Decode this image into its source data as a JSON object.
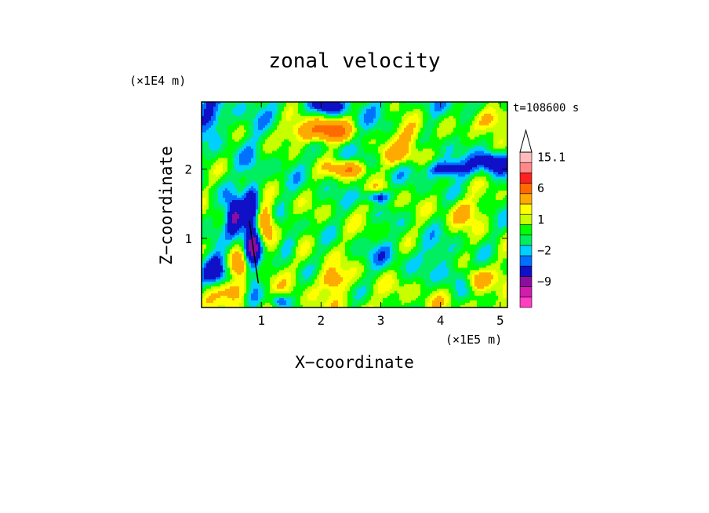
{
  "chart_data": {
    "type": "heatmap",
    "title": "zonal velocity",
    "xlabel": "X−coordinate",
    "ylabel": "Z−coordinate",
    "x_units_label": "(×1E5 m)",
    "y_units_label": "(×1E4 m)",
    "time_label": "t=108600 s",
    "xlim": [
      0,
      5.12
    ],
    "ylim": [
      0,
      2.97
    ],
    "x_ticks": [
      1,
      2,
      3,
      4,
      5
    ],
    "x_tick_labels": [
      "1",
      "2",
      "3",
      "4",
      "5"
    ],
    "y_ticks": [
      1,
      2
    ],
    "y_tick_labels": [
      "1",
      "2"
    ],
    "colorbar": {
      "levels": [
        -15,
        -12,
        -9,
        -6,
        -3,
        -2,
        -1,
        0,
        1,
        2,
        3,
        6,
        9,
        12,
        15.1
      ],
      "colors": [
        "#ff3fbf",
        "#d21cad",
        "#8b0e9f",
        "#1010c8",
        "#0070ff",
        "#00d0ff",
        "#00ee60",
        "#00ff00",
        "#c8ff00",
        "#ffff00",
        "#ffaa00",
        "#ff6a00",
        "#ff2020",
        "#ff8888",
        "#ffbbbb"
      ],
      "labels": [
        {
          "value": 15.1,
          "text": "15.1"
        },
        {
          "value": 6,
          "text": "6"
        },
        {
          "value": 1,
          "text": "1"
        },
        {
          "value": -2,
          "text": "−2"
        },
        {
          "value": -9,
          "text": "−9"
        }
      ],
      "extend": "max"
    },
    "field_features": [
      {
        "x": 0.85,
        "z": 1.0,
        "dx": 0.15,
        "dz": 0.7,
        "v": -9
      },
      {
        "x": 0.55,
        "z": 1.3,
        "dx": 0.15,
        "dz": 0.25,
        "v": -7
      },
      {
        "x": 0.3,
        "z": 0.55,
        "dx": 0.25,
        "dz": 0.25,
        "v": -6
      },
      {
        "x": 1.05,
        "z": 1.2,
        "dx": 0.18,
        "dz": 0.3,
        "v": 6
      },
      {
        "x": 0.7,
        "z": 0.6,
        "dx": 0.25,
        "dz": 0.25,
        "v": 5
      },
      {
        "x": 0.5,
        "z": 0.25,
        "dx": 0.25,
        "dz": 0.15,
        "v": 4
      },
      {
        "x": 2.15,
        "z": 2.55,
        "dx": 0.35,
        "dz": 0.15,
        "v": 7
      },
      {
        "x": 2.45,
        "z": 2.0,
        "dx": 0.3,
        "dz": 0.12,
        "v": 6
      },
      {
        "x": 1.7,
        "z": 2.55,
        "dx": 0.35,
        "dz": 0.2,
        "v": 4
      },
      {
        "x": 3.0,
        "z": 1.6,
        "dx": 0.3,
        "dz": 0.15,
        "v": 4
      },
      {
        "x": 3.5,
        "z": 2.5,
        "dx": 0.3,
        "dz": 0.25,
        "v": 4
      },
      {
        "x": 4.8,
        "z": 2.7,
        "dx": 0.3,
        "dz": 0.2,
        "v": 5
      },
      {
        "x": 3.3,
        "z": 2.2,
        "dx": 0.35,
        "dz": 0.15,
        "v": 3
      },
      {
        "x": 2.95,
        "z": 1.6,
        "dx": 0.25,
        "dz": 0.1,
        "v": -8
      },
      {
        "x": 4.1,
        "z": 2.0,
        "dx": 0.35,
        "dz": 0.12,
        "v": -5
      },
      {
        "x": 4.9,
        "z": 2.1,
        "dx": 0.25,
        "dz": 0.15,
        "v": -6
      },
      {
        "x": 2.1,
        "z": 2.9,
        "dx": 0.25,
        "dz": 0.1,
        "v": -4
      },
      {
        "x": 1.45,
        "z": 0.9,
        "dx": 0.15,
        "dz": 0.2,
        "v": -3
      },
      {
        "x": 3.1,
        "z": 0.75,
        "dx": 0.4,
        "dz": 0.3,
        "v": -2
      },
      {
        "x": 4.25,
        "z": 0.45,
        "dx": 0.25,
        "dz": 0.2,
        "v": -3
      },
      {
        "x": 4.6,
        "z": 0.4,
        "dx": 0.2,
        "dz": 0.15,
        "v": 4
      },
      {
        "x": 3.95,
        "z": 0.75,
        "dx": 0.35,
        "dz": 0.25,
        "v": -2
      },
      {
        "x": 2.2,
        "z": 0.4,
        "dx": 0.2,
        "dz": 0.15,
        "v": 4
      },
      {
        "x": 1.3,
        "z": 0.1,
        "dx": 0.15,
        "dz": 0.1,
        "v": -4
      },
      {
        "x": 4.4,
        "z": 1.4,
        "dx": 0.3,
        "dz": 0.2,
        "v": 3
      },
      {
        "x": 0.15,
        "z": 2.7,
        "dx": 0.2,
        "dz": 0.2,
        "v": -3
      }
    ]
  }
}
